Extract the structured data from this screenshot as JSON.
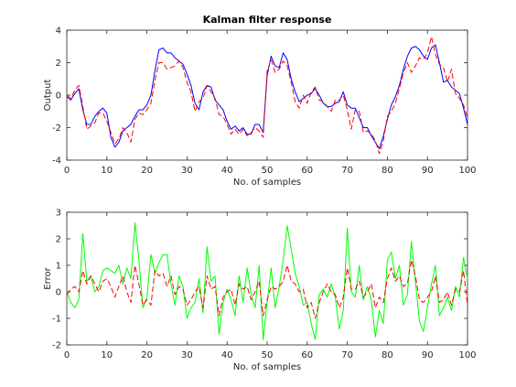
{
  "chart_data": [
    {
      "type": "line",
      "title": "Kalman filter response",
      "xlabel": "No. of samples",
      "ylabel": "Output",
      "xlim": [
        0,
        100
      ],
      "ylim": [
        -4,
        4
      ],
      "xticks": [
        0,
        10,
        20,
        30,
        40,
        50,
        60,
        70,
        80,
        90,
        100
      ],
      "yticks": [
        -4,
        -2,
        0,
        2,
        4
      ],
      "grid": false,
      "series": [
        {
          "color": "#0000ff",
          "dash": "solid",
          "x": [
            0,
            1,
            2,
            3,
            4,
            5,
            6,
            7,
            8,
            9,
            10,
            11,
            12,
            13,
            14,
            15,
            16,
            17,
            18,
            19,
            20,
            21,
            22,
            23,
            24,
            25,
            26,
            27,
            28,
            29,
            30,
            31,
            32,
            33,
            34,
            35,
            36,
            37,
            38,
            39,
            40,
            41,
            42,
            43,
            44,
            45,
            46,
            47,
            48,
            49,
            50,
            51,
            52,
            53,
            54,
            55,
            56,
            57,
            58,
            59,
            60,
            61,
            62,
            63,
            64,
            65,
            66,
            67,
            68,
            69,
            70,
            71,
            72,
            73,
            74,
            75,
            76,
            77,
            78,
            79,
            80,
            81,
            82,
            83,
            84,
            85,
            86,
            87,
            88,
            89,
            90,
            91,
            92,
            93,
            94,
            95,
            96,
            97,
            98,
            99,
            100
          ],
          "y": [
            -0.1,
            -0.3,
            0.1,
            0.4,
            -0.9,
            -1.8,
            -1.8,
            -1.3,
            -1.0,
            -0.8,
            -1.1,
            -2.6,
            -3.2,
            -2.9,
            -2.2,
            -2.0,
            -1.8,
            -1.3,
            -0.9,
            -0.9,
            -0.6,
            0.0,
            1.5,
            2.8,
            2.9,
            2.6,
            2.6,
            2.3,
            2.1,
            1.9,
            1.3,
            0.6,
            -0.5,
            -0.9,
            0.2,
            0.6,
            0.5,
            -0.3,
            -0.6,
            -0.9,
            -1.6,
            -2.1,
            -1.9,
            -2.2,
            -2.0,
            -2.4,
            -2.4,
            -1.8,
            -1.8,
            -2.3,
            1.2,
            2.4,
            1.8,
            1.7,
            2.6,
            2.2,
            1.0,
            0.2,
            -0.4,
            -0.2,
            0.0,
            0.1,
            0.4,
            0.0,
            -0.5,
            -0.7,
            -0.7,
            -0.5,
            -0.4,
            0.2,
            -0.6,
            -0.8,
            -0.8,
            -1.4,
            -2.0,
            -2.0,
            -2.5,
            -2.9,
            -3.3,
            -2.5,
            -1.5,
            -0.6,
            -0.1,
            0.6,
            1.6,
            2.4,
            2.9,
            3.0,
            2.8,
            2.4,
            2.2,
            2.9,
            3.1,
            2.0,
            0.8,
            0.9,
            0.5,
            0.3,
            0.1,
            -0.8,
            -1.8
          ]
        },
        {
          "color": "#ff0000",
          "dash": "dashed",
          "x": [
            0,
            1,
            2,
            3,
            4,
            5,
            6,
            7,
            8,
            9,
            10,
            11,
            12,
            13,
            14,
            15,
            16,
            17,
            18,
            19,
            20,
            21,
            22,
            23,
            24,
            25,
            26,
            27,
            28,
            29,
            30,
            31,
            32,
            33,
            34,
            35,
            36,
            37,
            38,
            39,
            40,
            41,
            42,
            43,
            44,
            45,
            46,
            47,
            48,
            49,
            50,
            51,
            52,
            53,
            54,
            55,
            56,
            57,
            58,
            59,
            60,
            61,
            62,
            63,
            64,
            65,
            66,
            67,
            68,
            69,
            70,
            71,
            72,
            73,
            74,
            75,
            76,
            77,
            78,
            79,
            80,
            81,
            82,
            83,
            84,
            85,
            86,
            87,
            88,
            89,
            90,
            91,
            92,
            93,
            94,
            95,
            96,
            97,
            98,
            99,
            100
          ],
          "y": [
            0.0,
            -0.2,
            0.3,
            0.6,
            -0.7,
            -2.1,
            -1.9,
            -1.7,
            -1.1,
            -1.1,
            -1.6,
            -2.3,
            -3.0,
            -2.7,
            -2.0,
            -2.3,
            -2.9,
            -1.5,
            -1.1,
            -1.2,
            -0.9,
            -0.5,
            0.9,
            2.0,
            2.0,
            1.6,
            1.7,
            1.8,
            2.1,
            1.7,
            0.8,
            0.2,
            -1.0,
            -0.4,
            -0.2,
            0.6,
            0.2,
            -0.2,
            -1.2,
            -1.3,
            -1.8,
            -2.4,
            -2.1,
            -2.4,
            -2.1,
            -2.5,
            -2.3,
            -2.0,
            -2.2,
            -2.6,
            1.5,
            2.2,
            1.4,
            1.6,
            2.1,
            1.8,
            0.8,
            -0.4,
            -0.8,
            0.0,
            -0.5,
            0.2,
            0.5,
            -0.3,
            -0.4,
            -0.7,
            -1.0,
            -0.3,
            -0.3,
            0.0,
            -0.9,
            -2.1,
            -0.9,
            -1.0,
            -2.3,
            -2.2,
            -2.4,
            -2.8,
            -3.6,
            -2.8,
            -1.3,
            -1.0,
            -0.5,
            0.4,
            1.4,
            2.0,
            1.4,
            1.8,
            2.3,
            2.2,
            2.6,
            3.6,
            2.5,
            1.9,
            1.7,
            0.8,
            1.6,
            0.1,
            -0.2,
            -0.6,
            -1.4
          ]
        }
      ]
    },
    {
      "type": "line",
      "xlabel": "No. of samples",
      "ylabel": "Error",
      "xlim": [
        0,
        100
      ],
      "ylim": [
        -2,
        3
      ],
      "xticks": [
        0,
        10,
        20,
        30,
        40,
        50,
        60,
        70,
        80,
        90,
        100
      ],
      "yticks": [
        -2,
        -1,
        0,
        1,
        2,
        3
      ],
      "grid": false,
      "series": [
        {
          "color": "#00ff00",
          "dash": "solid",
          "x": [
            0,
            1,
            2,
            3,
            4,
            5,
            6,
            7,
            8,
            9,
            10,
            11,
            12,
            13,
            14,
            15,
            16,
            17,
            18,
            19,
            20,
            21,
            22,
            23,
            24,
            25,
            26,
            27,
            28,
            29,
            30,
            31,
            32,
            33,
            34,
            35,
            36,
            37,
            38,
            39,
            40,
            41,
            42,
            43,
            44,
            45,
            46,
            47,
            48,
            49,
            50,
            51,
            52,
            53,
            54,
            55,
            56,
            57,
            58,
            59,
            60,
            61,
            62,
            63,
            64,
            65,
            66,
            67,
            68,
            69,
            70,
            71,
            72,
            73,
            74,
            75,
            76,
            77,
            78,
            79,
            80,
            81,
            82,
            83,
            84,
            85,
            86,
            87,
            88,
            89,
            90,
            91,
            92,
            93,
            94,
            95,
            96,
            97,
            98,
            99,
            100
          ],
          "y": [
            0.0,
            -0.4,
            -0.6,
            -0.3,
            2.2,
            0.4,
            0.6,
            0.0,
            0.2,
            0.8,
            0.9,
            0.8,
            0.7,
            1.0,
            0.3,
            0.9,
            0.5,
            2.6,
            1.2,
            -0.6,
            -0.2,
            1.4,
            0.7,
            1.1,
            1.4,
            1.4,
            0.3,
            -0.5,
            0.6,
            0.2,
            -1.0,
            -0.6,
            -0.4,
            0.5,
            -0.8,
            1.7,
            0.4,
            0.6,
            -1.6,
            -0.4,
            0.1,
            -0.3,
            -0.9,
            0.6,
            -0.4,
            0.9,
            -0.1,
            -0.6,
            1.0,
            -1.8,
            -0.4,
            0.9,
            -0.6,
            0.2,
            1.2,
            2.5,
            1.6,
            0.7,
            0.2,
            -0.5,
            -0.4,
            -1.2,
            -1.8,
            -0.1,
            0.1,
            -0.2,
            0.3,
            -0.2,
            -1.4,
            -0.7,
            2.4,
            0.0,
            -0.2,
            1.0,
            -0.3,
            0.2,
            -0.3,
            -1.7,
            -0.7,
            -1.2,
            1.2,
            1.5,
            0.5,
            1.0,
            -0.5,
            -0.1,
            1.9,
            0.4,
            -1.1,
            -1.5,
            -0.6,
            0.3,
            1.0,
            -0.9,
            -0.6,
            -0.2,
            -0.7,
            0.2,
            -0.2,
            1.3,
            0.5
          ]
        },
        {
          "color": "#ff0000",
          "dash": "dashed",
          "x": [
            0,
            1,
            2,
            3,
            4,
            5,
            6,
            7,
            8,
            9,
            10,
            11,
            12,
            13,
            14,
            15,
            16,
            17,
            18,
            19,
            20,
            21,
            22,
            23,
            24,
            25,
            26,
            27,
            28,
            29,
            30,
            31,
            32,
            33,
            34,
            35,
            36,
            37,
            38,
            39,
            40,
            41,
            42,
            43,
            44,
            45,
            46,
            47,
            48,
            49,
            50,
            51,
            52,
            53,
            54,
            55,
            56,
            57,
            58,
            59,
            60,
            61,
            62,
            63,
            64,
            65,
            66,
            67,
            68,
            69,
            70,
            71,
            72,
            73,
            74,
            75,
            76,
            77,
            78,
            79,
            80,
            81,
            82,
            83,
            84,
            85,
            86,
            87,
            88,
            89,
            90,
            91,
            92,
            93,
            94,
            95,
            96,
            97,
            98,
            99,
            100
          ],
          "y": [
            -0.1,
            0.1,
            0.2,
            0.0,
            0.8,
            0.3,
            0.6,
            0.3,
            0.0,
            0.4,
            0.5,
            0.2,
            -0.2,
            0.2,
            0.6,
            0.0,
            -0.4,
            1.0,
            0.3,
            -0.5,
            -0.3,
            -0.5,
            0.8,
            0.6,
            0.7,
            0.2,
            0.6,
            -0.1,
            0.2,
            0.1,
            -0.5,
            -0.3,
            0.0,
            0.2,
            -0.6,
            0.6,
            0.1,
            0.2,
            -0.9,
            -0.2,
            0.0,
            0.1,
            -0.5,
            0.3,
            0.1,
            0.2,
            -0.3,
            0.0,
            0.4,
            -0.9,
            -0.3,
            0.2,
            0.1,
            0.2,
            0.4,
            1.0,
            0.4,
            0.3,
            0.0,
            0.1,
            -0.6,
            -0.4,
            -1.0,
            -0.4,
            0.0,
            0.3,
            0.0,
            -0.1,
            -0.6,
            -0.2,
            0.9,
            0.1,
            0.1,
            0.4,
            -0.2,
            0.0,
            0.3,
            -0.6,
            -0.2,
            -0.4,
            0.5,
            0.9,
            0.4,
            0.6,
            0.2,
            0.3,
            1.2,
            0.6,
            -0.3,
            -0.4,
            -0.2,
            0.0,
            0.6,
            -0.4,
            -0.3,
            0.0,
            -0.5,
            0.1,
            0.0,
            0.8,
            -0.5
          ]
        }
      ]
    }
  ]
}
